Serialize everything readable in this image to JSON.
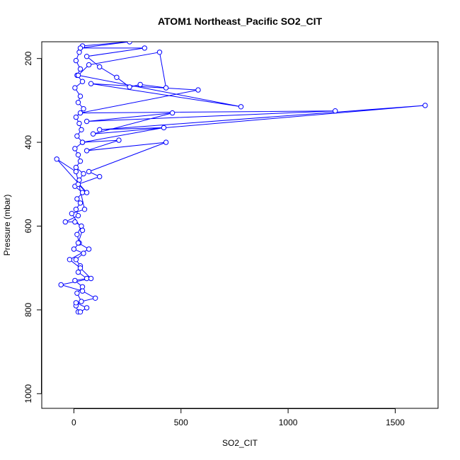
{
  "chart_data": {
    "type": "line",
    "title": "ATOM1 Northeast_Pacific SO2_CIT",
    "xlabel": "SO2_CIT",
    "ylabel": "Pressure (mbar)",
    "xlim": [
      -150,
      1700
    ],
    "ylim": [
      160,
      1035
    ],
    "y_reversed": true,
    "x_ticks": [
      0,
      500,
      1000,
      1500
    ],
    "x_tick_labels": [
      "0",
      "500",
      "1000",
      "1500"
    ],
    "y_ticks": [
      200,
      400,
      600,
      800,
      1000
    ],
    "y_tick_labels": [
      "200",
      "400",
      "600",
      "800",
      "1000"
    ],
    "grid": false,
    "marker": "open-circle",
    "series_color": "#0000ff",
    "series": [
      {
        "values": [
          [
            20,
            805
          ],
          [
            10,
            790
          ],
          [
            35,
            780
          ],
          [
            15,
            760
          ],
          [
            40,
            745
          ],
          [
            5,
            730
          ],
          [
            60,
            725
          ],
          [
            20,
            710
          ],
          [
            30,
            695
          ],
          [
            10,
            680
          ],
          [
            45,
            665
          ],
          [
            0,
            655
          ],
          [
            25,
            640
          ],
          [
            15,
            620
          ],
          [
            35,
            600
          ],
          [
            5,
            590
          ],
          [
            -40,
            590
          ],
          [
            20,
            575
          ],
          [
            10,
            560
          ],
          [
            30,
            545
          ],
          [
            15,
            535
          ],
          [
            40,
            520
          ],
          [
            5,
            505
          ],
          [
            25,
            490
          ],
          [
            45,
            475
          ],
          [
            10,
            460
          ],
          [
            30,
            445
          ],
          [
            20,
            430
          ],
          [
            5,
            415
          ],
          [
            40,
            400
          ],
          [
            15,
            385
          ],
          [
            35,
            370
          ],
          [
            25,
            355
          ],
          [
            10,
            340
          ],
          [
            45,
            320
          ],
          [
            20,
            305
          ],
          [
            30,
            290
          ],
          [
            5,
            270
          ],
          [
            40,
            255
          ],
          [
            15,
            240
          ],
          [
            30,
            225
          ],
          [
            10,
            205
          ],
          [
            25,
            185
          ],
          [
            40,
            170
          ],
          [
            260,
            160
          ],
          [
            30,
            175
          ],
          [
            330,
            175
          ],
          [
            60,
            195
          ],
          [
            120,
            220
          ],
          [
            200,
            245
          ],
          [
            260,
            268
          ],
          [
            310,
            262
          ],
          [
            430,
            270
          ],
          [
            400,
            185
          ],
          [
            70,
            215
          ],
          [
            20,
            240
          ],
          [
            780,
            315
          ],
          [
            80,
            260
          ],
          [
            580,
            275
          ],
          [
            30,
            330
          ],
          [
            1220,
            325
          ],
          [
            60,
            350
          ],
          [
            460,
            330
          ],
          [
            90,
            380
          ],
          [
            1640,
            312
          ],
          [
            120,
            370
          ],
          [
            420,
            365
          ],
          [
            40,
            400
          ],
          [
            210,
            395
          ],
          [
            60,
            420
          ],
          [
            430,
            400
          ],
          [
            70,
            470
          ],
          [
            120,
            482
          ],
          [
            20,
            500
          ],
          [
            60,
            520
          ],
          [
            -80,
            440
          ],
          [
            10,
            470
          ],
          [
            50,
            560
          ],
          [
            -10,
            570
          ],
          [
            40,
            610
          ],
          [
            20,
            640
          ],
          [
            70,
            655
          ],
          [
            -20,
            680
          ],
          [
            30,
            700
          ],
          [
            80,
            725
          ],
          [
            -60,
            740
          ],
          [
            40,
            755
          ],
          [
            100,
            772
          ],
          [
            10,
            783
          ],
          [
            60,
            795
          ],
          [
            30,
            805
          ]
        ]
      }
    ]
  }
}
